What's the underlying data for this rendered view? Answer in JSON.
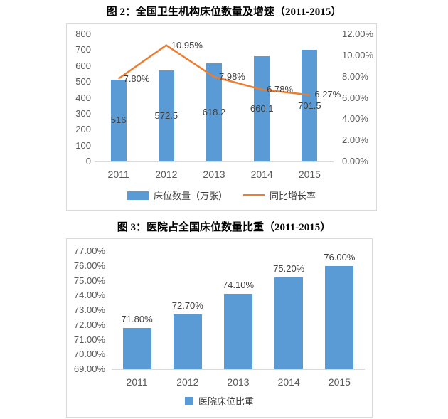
{
  "page": {
    "background": "#ffffff"
  },
  "chart_data": [
    {
      "type": "bar+line",
      "title": "图 2：全国卫生机构床位数量及增速（2011-2015）",
      "categories": [
        "2011",
        "2012",
        "2013",
        "2014",
        "2015"
      ],
      "series": [
        {
          "name": "床位数量（万张）",
          "kind": "bar",
          "axis": "left",
          "color": "#5B9BD5",
          "values": [
            516,
            572.5,
            618.2,
            660.1,
            701.5
          ],
          "labels": [
            "516",
            "572.5",
            "618.2",
            "660.1",
            "701.5"
          ]
        },
        {
          "name": "同比增长率",
          "kind": "line",
          "axis": "right",
          "color": "#ED7D31",
          "values": [
            7.8,
            10.95,
            7.98,
            6.78,
            6.27
          ],
          "labels": [
            "7.80%",
            "10.95%",
            "7.98%",
            "6.78%",
            "6.27%"
          ]
        }
      ],
      "left_axis": {
        "min": 0,
        "max": 800,
        "ticks": [
          "800",
          "700",
          "600",
          "500",
          "400",
          "300",
          "200",
          "100",
          "0"
        ]
      },
      "right_axis": {
        "min": 0,
        "max": 12,
        "ticks": [
          "12.00%",
          "10.00%",
          "8.00%",
          "6.00%",
          "4.00%",
          "2.00%",
          "0.00%"
        ]
      },
      "grid": false,
      "legend_position": "bottom"
    },
    {
      "type": "bar",
      "title": "图 3：医院占全国床位数量比重（2011-2015）",
      "categories": [
        "2011",
        "2012",
        "2013",
        "2014",
        "2015"
      ],
      "series": [
        {
          "name": "医院床位比重",
          "kind": "bar",
          "axis": "left",
          "color": "#5B9BD5",
          "values": [
            71.8,
            72.7,
            74.1,
            75.2,
            76.0
          ],
          "labels": [
            "71.80%",
            "72.70%",
            "74.10%",
            "75.20%",
            "76.00%"
          ]
        }
      ],
      "left_axis": {
        "min": 69,
        "max": 77,
        "ticks": [
          "77.00%",
          "76.00%",
          "75.00%",
          "74.00%",
          "73.00%",
          "72.00%",
          "71.00%",
          "70.00%",
          "69.00%"
        ]
      },
      "grid": false,
      "legend_position": "bottom"
    }
  ],
  "colors": {
    "bar_blue": "#5B9BD5",
    "line_orange": "#ED7D31",
    "axis_text": "#595959",
    "label_text": "#404040",
    "box_border": "#D9D9D9"
  }
}
